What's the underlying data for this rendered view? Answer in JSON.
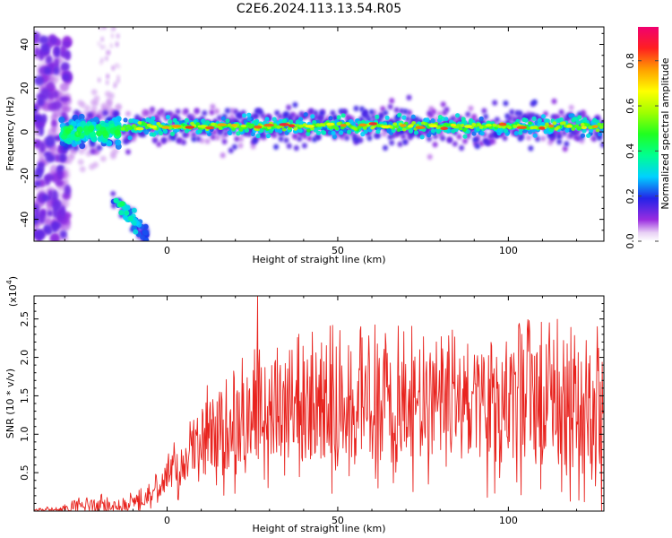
{
  "title": "C2E6.2024.113.13.54.R05",
  "chart_data": [
    {
      "type": "heatmap",
      "xlabel": "Height of straight line (km)",
      "ylabel": "Frequency (Hz)",
      "xlim": [
        -39,
        128
      ],
      "ylim": [
        -50,
        48
      ],
      "xticks": [
        0,
        50,
        100
      ],
      "yticks": [
        -40,
        -20,
        0,
        20,
        40
      ],
      "colorbar": {
        "label": "Normalized spectral amplitude",
        "range": [
          0.0,
          0.95
        ],
        "ticks": [
          0.0,
          0.2,
          0.4,
          0.6,
          0.8
        ]
      },
      "features": [
        {
          "name": "main-band",
          "x_range": [
            -12,
            128
          ],
          "frequency": 2.5,
          "peak_amplitude": 0.85
        },
        {
          "name": "low-altitude-cluster",
          "x_range": [
            -30,
            -14
          ],
          "frequency_range": [
            -10,
            10
          ],
          "peak_amplitude": 0.5
        },
        {
          "name": "descending-streak",
          "x_range": [
            -16,
            -6
          ],
          "frequency_range": [
            -48,
            -30
          ],
          "peak_amplitude": 0.45
        },
        {
          "name": "left-scatter",
          "x_range": [
            -39,
            -29
          ],
          "frequency_range": [
            -50,
            45
          ],
          "peak_amplitude": 0.15
        }
      ]
    },
    {
      "type": "line",
      "xlabel": "Height of straight line (km)",
      "ylabel": "SNR (10 * v/v)",
      "yscale_label": "(x10",
      "yscale_exponent": "4",
      "yscale_suffix": ")",
      "xlim": [
        -39,
        128
      ],
      "ylim": [
        0.0,
        2.8
      ],
      "xticks": [
        0,
        50,
        100
      ],
      "yticks": [
        0.5,
        1.0,
        1.5,
        2.0,
        2.5
      ],
      "color": "#e8231e",
      "envelope": {
        "x": [
          -39,
          -30,
          -22,
          -14,
          -8,
          -3,
          0,
          5,
          10,
          15,
          20,
          25,
          30,
          40,
          50,
          60,
          70,
          80,
          90,
          100,
          110,
          120,
          128
        ],
        "mean": [
          0.01,
          0.03,
          0.1,
          0.05,
          0.15,
          0.3,
          0.45,
          0.65,
          0.9,
          1.0,
          1.15,
          1.2,
          1.3,
          1.35,
          1.35,
          1.35,
          1.3,
          1.4,
          1.35,
          1.3,
          1.35,
          1.3,
          1.25
        ],
        "amp": [
          0.01,
          0.03,
          0.08,
          0.05,
          0.08,
          0.12,
          0.15,
          0.25,
          0.35,
          0.4,
          0.45,
          0.5,
          0.5,
          0.55,
          0.55,
          0.55,
          0.55,
          0.55,
          0.55,
          0.6,
          0.6,
          0.6,
          0.6
        ]
      },
      "peaks": [
        {
          "x": 26.5,
          "y": 2.8
        },
        {
          "x": 74,
          "y": 2.1
        },
        {
          "x": 104,
          "y": 2.3
        },
        {
          "x": 112,
          "y": 2.45
        },
        {
          "x": 126,
          "y": 2.4
        }
      ]
    }
  ]
}
